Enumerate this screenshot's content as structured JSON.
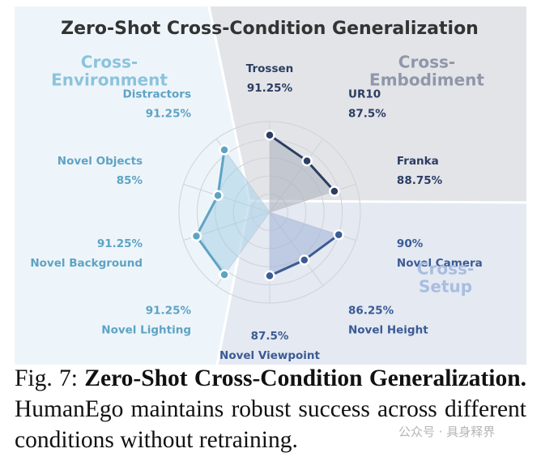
{
  "chart_data": {
    "type": "radar",
    "title": "Zero-Shot Cross-Condition Generalization",
    "categories": [
      "Trossen",
      "UR10",
      "Franka",
      "Novel Camera",
      "Novel Height",
      "Novel Viewpoint",
      "Novel Lighting",
      "Novel Background",
      "Novel Objects",
      "Distractors"
    ],
    "ylim": [
      70,
      95
    ],
    "yticks": [
      75,
      80,
      85,
      90,
      95
    ],
    "grid": true,
    "series": [
      {
        "name": [
          "Cross-",
          "Embodiment"
        ],
        "color": "#2b3d63",
        "fill": "#a9aeba",
        "label_color": "#8f97a8",
        "values": [
          91.25,
          87.5,
          88.75,
          null,
          null,
          null,
          null,
          null,
          null,
          null
        ],
        "value_labels": [
          "91.25%",
          "87.5%",
          "88.75%",
          null,
          null,
          null,
          null,
          null,
          null,
          null
        ]
      },
      {
        "name": [
          "Cross-",
          "Setup"
        ],
        "color": "#3b5b94",
        "fill": "#9fb2d6",
        "label_color": "#a9bde0",
        "values": [
          null,
          null,
          null,
          90,
          86.25,
          87.5,
          null,
          null,
          null,
          null
        ],
        "value_labels": [
          null,
          null,
          null,
          "90%",
          "86.25%",
          "87.5%",
          null,
          null,
          null,
          null
        ]
      },
      {
        "name": [
          "Cross-",
          "Environment"
        ],
        "color": "#5ea3c4",
        "fill": "#a8d0e6",
        "label_color": "#8cc3dc",
        "values": [
          null,
          null,
          null,
          null,
          null,
          null,
          91.25,
          91.25,
          85,
          91.25
        ],
        "value_labels": [
          null,
          null,
          null,
          null,
          null,
          null,
          "91.25%",
          "91.25%",
          "85%",
          "91.25%"
        ]
      }
    ]
  },
  "caption": {
    "label": "Fig. 7:",
    "title": "Zero-Shot Cross-Condition Generalization.",
    "text": "HumanEgo maintains robust success across different conditions without retraining."
  },
  "watermark": "公众号 · 具身释界"
}
